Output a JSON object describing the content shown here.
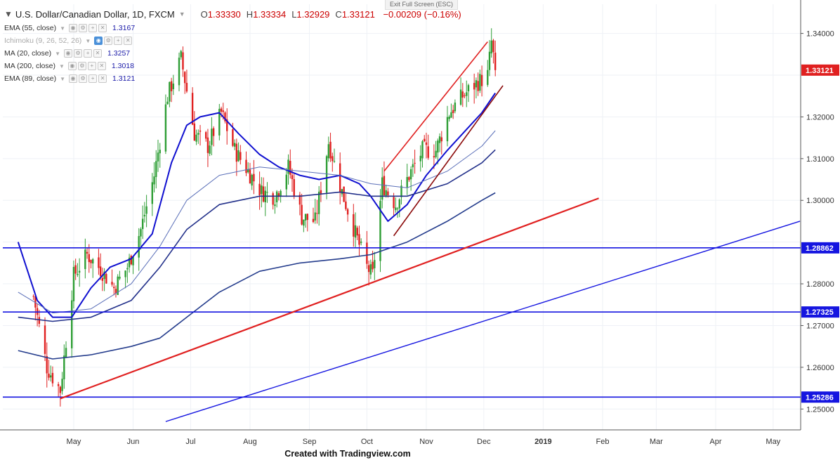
{
  "header": {
    "exit_fullscreen": "Exit Full Screen (ESC)",
    "symbol": "U.S. Dollar/Canadian Dollar, 1D, FXCM",
    "ohlc": [
      {
        "key": "O",
        "value": "1.33330"
      },
      {
        "key": "H",
        "value": "1.33334"
      },
      {
        "key": "L",
        "value": "1.32929"
      },
      {
        "key": "C",
        "value": "1.33121"
      },
      {
        "key": "",
        "value": "−0.00209 (−0.16%)"
      }
    ]
  },
  "indicators": [
    {
      "label": "EMA (55, close)",
      "value": "1.3167",
      "faded": false,
      "visible_on": false
    },
    {
      "label": "Ichimoku (9, 26, 52, 26)",
      "value": "",
      "faded": true,
      "visible_on": true
    },
    {
      "label": "MA (20, close)",
      "value": "1.3257",
      "faded": false,
      "visible_on": false
    },
    {
      "label": "MA (200, close)",
      "value": "1.3018",
      "faded": false,
      "visible_on": false
    },
    {
      "label": "EMA (89, close)",
      "value": "1.3121",
      "faded": false,
      "visible_on": false
    }
  ],
  "footer": "Created with Tradingview.com",
  "chart_data": {
    "type": "candlestick",
    "symbol": "USDCAD",
    "timeframe": "1D",
    "price_axis": {
      "range": [
        1.245,
        1.347
      ],
      "ticks": [
        1.25,
        1.26,
        1.27,
        1.28,
        1.29,
        1.3,
        1.31,
        1.32,
        1.33,
        1.34
      ],
      "tick_labels": [
        "1.25000",
        "1.26000",
        "1.27000",
        "1.28000",
        "",
        "1.30000",
        "1.31000",
        "1.32000",
        "",
        "1.34000"
      ]
    },
    "time_axis": {
      "labels": [
        "May",
        "Jun",
        "Jul",
        "Aug",
        "Sep",
        "Oct",
        "Nov",
        "Dec",
        "2019",
        "Feb",
        "Mar",
        "Apr",
        "May"
      ],
      "bold_labels": [
        "2019"
      ]
    },
    "price_labels": [
      {
        "value": 1.33121,
        "text": "1.33121",
        "color": "#e02020"
      },
      {
        "value": 1.28862,
        "text": "1.28862",
        "color": "#1515e0"
      },
      {
        "value": 1.27325,
        "text": "1.27325",
        "color": "#1515e0"
      },
      {
        "value": 1.25286,
        "text": "1.25286",
        "color": "#1515e0"
      }
    ],
    "horizontal_lines": [
      {
        "price": 1.28862,
        "color": "#1515e0"
      },
      {
        "price": 1.27325,
        "color": "#1515e0"
      },
      {
        "price": 1.25286,
        "color": "#1515e0"
      }
    ],
    "trend_lines": [
      {
        "name": "support-red",
        "from": [
          "2018-04-24",
          1.2525
        ],
        "to": [
          "2019-01-30",
          1.3005
        ],
        "color": "#e02020",
        "width": 2.2
      },
      {
        "name": "support-blue",
        "from": [
          "2018-06-18",
          1.247
        ],
        "to": [
          "2019-05-15",
          1.295
        ],
        "color": "#1515e0",
        "width": 1.4
      },
      {
        "name": "channel-upper",
        "from": [
          "2018-10-10",
          1.307
        ],
        "to": [
          "2018-12-03",
          1.338
        ],
        "color": "#e02020",
        "width": 1.6
      },
      {
        "name": "channel-lower",
        "from": [
          "2018-10-15",
          1.2915
        ],
        "to": [
          "2018-12-11",
          1.3275
        ],
        "color": "#8b0a0a",
        "width": 1.6
      }
    ],
    "candles_anchor": {
      "last_date": "2018-12-07",
      "last_close": 1.33121
    },
    "key_levels": [
      [
        "2018-04-10",
        1.277
      ],
      [
        "2018-04-17",
        1.26
      ],
      [
        "2018-04-24",
        1.2545
      ],
      [
        "2018-05-01",
        1.282
      ],
      [
        "2018-05-08",
        1.287
      ],
      [
        "2018-05-15",
        1.2835
      ],
      [
        "2018-05-22",
        1.279
      ],
      [
        "2018-05-29",
        1.284
      ],
      [
        "2018-06-05",
        1.293
      ],
      [
        "2018-06-12",
        1.306
      ],
      [
        "2018-06-19",
        1.325
      ],
      [
        "2018-06-26",
        1.334
      ],
      [
        "2018-07-03",
        1.316
      ],
      [
        "2018-07-10",
        1.313
      ],
      [
        "2018-07-17",
        1.321
      ],
      [
        "2018-07-24",
        1.312
      ],
      [
        "2018-07-31",
        1.307
      ],
      [
        "2018-08-07",
        1.302
      ],
      [
        "2018-08-14",
        1.301
      ],
      [
        "2018-08-21",
        1.308
      ],
      [
        "2018-08-28",
        1.296
      ],
      [
        "2018-09-04",
        1.295
      ],
      [
        "2018-09-11",
        1.314
      ],
      [
        "2018-09-18",
        1.302
      ],
      [
        "2018-09-25",
        1.292
      ],
      [
        "2018-10-01",
        1.284
      ],
      [
        "2018-10-04",
        1.282
      ],
      [
        "2018-10-09",
        1.304
      ],
      [
        "2018-10-16",
        1.299
      ],
      [
        "2018-10-23",
        1.306
      ],
      [
        "2018-10-30",
        1.312
      ],
      [
        "2018-11-06",
        1.312
      ],
      [
        "2018-11-13",
        1.321
      ],
      [
        "2018-11-20",
        1.325
      ],
      [
        "2018-11-27",
        1.328
      ],
      [
        "2018-12-03",
        1.33
      ],
      [
        "2018-12-05",
        1.338
      ],
      [
        "2018-12-07",
        1.33121
      ]
    ],
    "moving_averages": [
      {
        "name": "MA (20, close)",
        "color": "#1010d0",
        "width": 2.0,
        "points": [
          [
            "2018-04-02",
            1.29
          ],
          [
            "2018-04-12",
            1.276
          ],
          [
            "2018-04-20",
            1.272
          ],
          [
            "2018-04-30",
            1.272
          ],
          [
            "2018-05-10",
            1.279
          ],
          [
            "2018-05-20",
            1.284
          ],
          [
            "2018-05-31",
            1.286
          ],
          [
            "2018-06-11",
            1.292
          ],
          [
            "2018-06-21",
            1.309
          ],
          [
            "2018-06-29",
            1.318
          ],
          [
            "2018-07-06",
            1.32
          ],
          [
            "2018-07-16",
            1.321
          ],
          [
            "2018-07-26",
            1.316
          ],
          [
            "2018-08-06",
            1.311
          ],
          [
            "2018-08-16",
            1.308
          ],
          [
            "2018-08-27",
            1.306
          ],
          [
            "2018-09-06",
            1.305
          ],
          [
            "2018-09-17",
            1.306
          ],
          [
            "2018-09-27",
            1.304
          ],
          [
            "2018-10-03",
            1.301
          ],
          [
            "2018-10-12",
            1.295
          ],
          [
            "2018-10-22",
            1.299
          ],
          [
            "2018-11-01",
            1.306
          ],
          [
            "2018-11-12",
            1.312
          ],
          [
            "2018-11-22",
            1.317
          ],
          [
            "2018-11-30",
            1.321
          ],
          [
            "2018-12-07",
            1.3257
          ]
        ]
      },
      {
        "name": "EMA (55, close)",
        "color": "#5a6fb8",
        "width": 1.0,
        "points": [
          [
            "2018-04-02",
            1.278
          ],
          [
            "2018-04-20",
            1.273
          ],
          [
            "2018-05-10",
            1.274
          ],
          [
            "2018-05-31",
            1.28
          ],
          [
            "2018-06-15",
            1.289
          ],
          [
            "2018-06-29",
            1.3
          ],
          [
            "2018-07-16",
            1.306
          ],
          [
            "2018-08-06",
            1.308
          ],
          [
            "2018-08-27",
            1.307
          ],
          [
            "2018-09-17",
            1.306
          ],
          [
            "2018-10-03",
            1.304
          ],
          [
            "2018-10-22",
            1.303
          ],
          [
            "2018-11-12",
            1.307
          ],
          [
            "2018-11-30",
            1.313
          ],
          [
            "2018-12-07",
            1.3167
          ]
        ]
      },
      {
        "name": "EMA (89, close)",
        "color": "#22308a",
        "width": 1.6,
        "points": [
          [
            "2018-04-02",
            1.272
          ],
          [
            "2018-04-20",
            1.271
          ],
          [
            "2018-05-10",
            1.272
          ],
          [
            "2018-05-31",
            1.276
          ],
          [
            "2018-06-15",
            1.284
          ],
          [
            "2018-06-29",
            1.293
          ],
          [
            "2018-07-16",
            1.299
          ],
          [
            "2018-08-06",
            1.301
          ],
          [
            "2018-08-27",
            1.301
          ],
          [
            "2018-09-17",
            1.302
          ],
          [
            "2018-10-03",
            1.301
          ],
          [
            "2018-10-22",
            1.301
          ],
          [
            "2018-11-12",
            1.304
          ],
          [
            "2018-11-30",
            1.309
          ],
          [
            "2018-12-07",
            1.3121
          ]
        ]
      },
      {
        "name": "MA (200, close)",
        "color": "#243c8c",
        "width": 1.6,
        "points": [
          [
            "2018-04-02",
            1.264
          ],
          [
            "2018-04-20",
            1.262
          ],
          [
            "2018-05-10",
            1.263
          ],
          [
            "2018-05-31",
            1.265
          ],
          [
            "2018-06-15",
            1.267
          ],
          [
            "2018-06-29",
            1.272
          ],
          [
            "2018-07-16",
            1.278
          ],
          [
            "2018-08-06",
            1.283
          ],
          [
            "2018-08-27",
            1.285
          ],
          [
            "2018-09-17",
            1.286
          ],
          [
            "2018-10-03",
            1.287
          ],
          [
            "2018-10-22",
            1.29
          ],
          [
            "2018-11-12",
            1.295
          ],
          [
            "2018-11-30",
            1.3
          ],
          [
            "2018-12-07",
            1.3018
          ]
        ]
      }
    ],
    "colors": {
      "up": "#2e9e35",
      "down": "#e02020",
      "grid": "#eef1f6"
    }
  }
}
